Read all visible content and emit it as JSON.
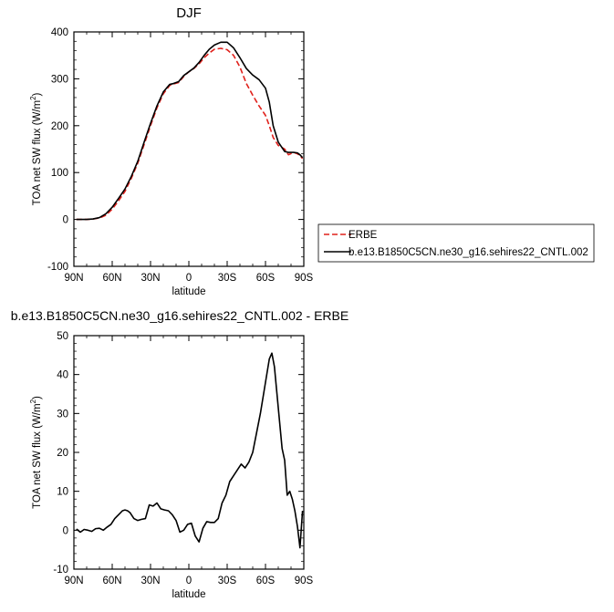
{
  "chart_data": [
    {
      "type": "line",
      "title": "DJF",
      "xlabel": "latitude",
      "ylabel": "TOA net SW flux (W/m²)",
      "xlim": [
        -90,
        90
      ],
      "ylim": [
        -100,
        400
      ],
      "x_ticks": [
        -90,
        -60,
        -30,
        0,
        30,
        60,
        90
      ],
      "x_tick_labels": [
        "90N",
        "60N",
        "30N",
        "0",
        "30S",
        "60S",
        "90S"
      ],
      "y_ticks": [
        -100,
        0,
        100,
        200,
        300,
        400
      ],
      "y_tick_labels": [
        "-100",
        "0",
        "100",
        "200",
        "300",
        "400"
      ],
      "legend": "right",
      "series": [
        {
          "name": "ERBE",
          "color": "#e0201b",
          "dash": "dashed",
          "x": [
            -88,
            -80,
            -75,
            -70,
            -65,
            -60,
            -55,
            -50,
            -45,
            -40,
            -35,
            -30,
            -25,
            -20,
            -15,
            -12,
            -8,
            -4,
            0,
            4,
            8,
            12,
            16,
            20,
            25,
            30,
            35,
            40,
            45,
            50,
            55,
            60,
            63,
            66,
            70,
            75,
            78,
            82,
            85,
            87,
            89
          ],
          "values": [
            0,
            0,
            1,
            3,
            9,
            22,
            40,
            60,
            88,
            120,
            160,
            200,
            238,
            268,
            286,
            289,
            292,
            305,
            315,
            322,
            332,
            345,
            355,
            363,
            365,
            362,
            350,
            325,
            290,
            265,
            242,
            222,
            200,
            175,
            158,
            150,
            138,
            143,
            140,
            136,
            130
          ]
        },
        {
          "name": "b.e13.B1850C5CN.ne30_g16.sehires22_CNTL.002",
          "color": "#000000",
          "dash": "solid",
          "x": [
            -88,
            -80,
            -75,
            -70,
            -65,
            -60,
            -55,
            -50,
            -45,
            -40,
            -35,
            -30,
            -25,
            -20,
            -15,
            -12,
            -8,
            -4,
            0,
            4,
            8,
            12,
            16,
            20,
            25,
            30,
            35,
            40,
            45,
            50,
            55,
            60,
            63,
            66,
            70,
            75,
            78,
            82,
            85,
            87,
            89
          ],
          "values": [
            0,
            0,
            1,
            4,
            12,
            26,
            45,
            65,
            92,
            124,
            165,
            205,
            242,
            272,
            288,
            290,
            294,
            307,
            315,
            323,
            335,
            350,
            363,
            372,
            378,
            378,
            366,
            345,
            322,
            308,
            298,
            280,
            250,
            200,
            165,
            145,
            143,
            143,
            142,
            138,
            132
          ]
        }
      ]
    },
    {
      "type": "line",
      "title": "b.e13.B1850C5CN.ne30_g16.sehires22_CNTL.002 - ERBE",
      "xlabel": "latitude",
      "ylabel": "TOA net SW flux (W/m²)",
      "xlim": [
        -90,
        90
      ],
      "ylim": [
        -10,
        50
      ],
      "x_ticks": [
        -90,
        -60,
        -30,
        0,
        30,
        60,
        90
      ],
      "x_tick_labels": [
        "90N",
        "60N",
        "30N",
        "0",
        "30S",
        "60S",
        "90S"
      ],
      "y_ticks": [
        -10,
        0,
        10,
        20,
        30,
        40,
        50
      ],
      "y_tick_labels": [
        "-10",
        "0",
        "10",
        "20",
        "30",
        "40",
        "50"
      ],
      "series": [
        {
          "color": "#000000",
          "dash": "solid",
          "x": [
            -88,
            -85,
            -82,
            -79,
            -76,
            -73,
            -70,
            -67,
            -64,
            -61,
            -58,
            -55,
            -52,
            -50,
            -48,
            -46,
            -43,
            -40,
            -37,
            -34,
            -31,
            -28,
            -25,
            -22,
            -19,
            -16,
            -13,
            -10,
            -7,
            -4,
            -1,
            2,
            5,
            8,
            11,
            14,
            17,
            20,
            23,
            26,
            29,
            32,
            35,
            38,
            41,
            44,
            47,
            50,
            53,
            56,
            59,
            61,
            63,
            65,
            67,
            69,
            71,
            73,
            75,
            77,
            79,
            81,
            83,
            85,
            87,
            89
          ],
          "values": [
            0.3,
            -0.5,
            0.2,
            0,
            -0.3,
            0.4,
            0.5,
            0,
            0.8,
            1.5,
            3,
            4,
            5,
            5.2,
            5,
            4.5,
            3,
            2.5,
            2.8,
            3,
            6.5,
            6.2,
            7,
            5.5,
            5.2,
            5,
            4,
            2.5,
            -0.5,
            0,
            1.5,
            1.8,
            -1.5,
            -3,
            0.5,
            2.2,
            2,
            2,
            3,
            7,
            9,
            12.5,
            14,
            15.5,
            17,
            16,
            17.5,
            20,
            25,
            30,
            36,
            40,
            44,
            45.5,
            42,
            35,
            28,
            21,
            18,
            9,
            10,
            8,
            5,
            1,
            -4.5,
            5
          ]
        }
      ]
    }
  ]
}
